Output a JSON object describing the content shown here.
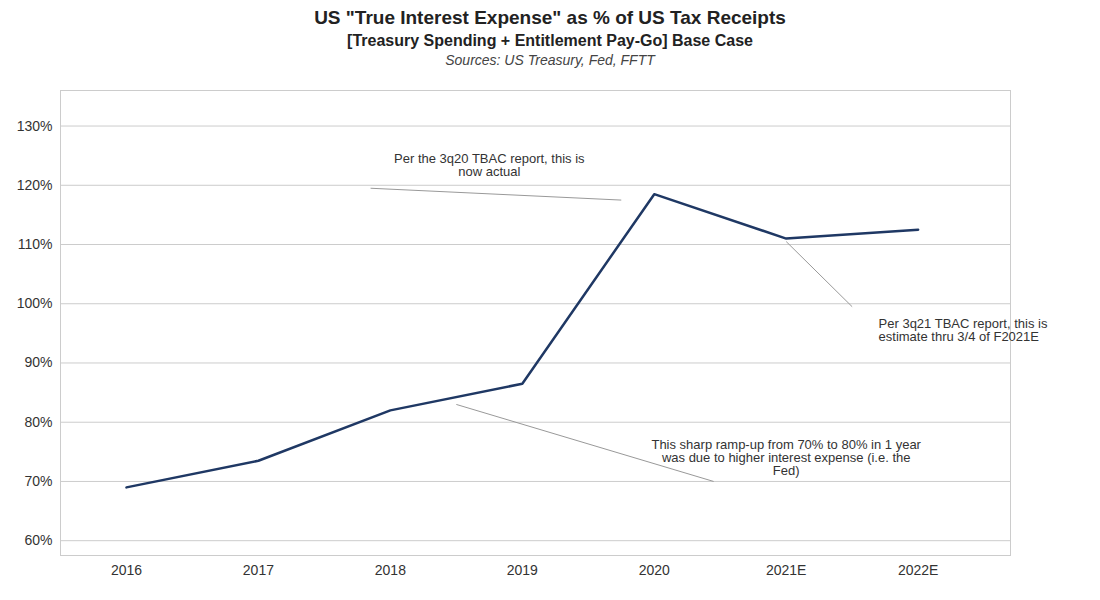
{
  "chart_data": {
    "type": "line",
    "title": "US \"True Interest Expense\" as % of US Tax Receipts",
    "subtitle": "[Treasury Spending + Entitlement Pay-Go] Base Case",
    "caption": "Sources: US Treasury, Fed, FFTT",
    "categories": [
      "2016",
      "2017",
      "2018",
      "2019",
      "2020",
      "2021E",
      "2022E"
    ],
    "values": [
      0.69,
      0.735,
      0.82,
      0.865,
      1.185,
      1.11,
      1.125
    ],
    "color": "#1f3864",
    "ylim": [
      0.575,
      1.36
    ],
    "yticks": [
      {
        "value": 0.6,
        "label": "60%"
      },
      {
        "value": 0.7,
        "label": "70%"
      },
      {
        "value": 0.8,
        "label": "80%"
      },
      {
        "value": 0.9,
        "label": "90%"
      },
      {
        "value": 1.0,
        "label": "100%"
      },
      {
        "value": 1.1,
        "label": "110%"
      },
      {
        "value": 1.2,
        "label": "120%"
      },
      {
        "value": 1.3,
        "label": "130%"
      }
    ],
    "grid": true,
    "annotations": [
      "Per the 3q20 TBAC report, this is\nnow actual",
      "Per 3q21 TBAC report, this is\nestimate thru 3/4 of F2021E",
      "This sharp ramp-up from 70% to 80% in 1 year\nwas due to higher interest expense (i.e. the\nFed)"
    ]
  }
}
